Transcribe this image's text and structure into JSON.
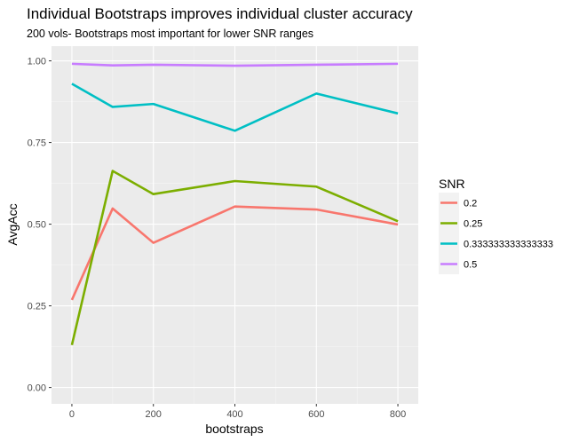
{
  "chart_data": {
    "type": "line",
    "title": "Individual Bootstraps improves individual cluster accuracy",
    "subtitle": "200 vols- Bootstraps most important for lower SNR ranges",
    "xlabel": "bootstraps",
    "ylabel": "AvgAcc",
    "x": [
      0,
      100,
      200,
      400,
      600,
      800
    ],
    "xlim": [
      -50,
      850
    ],
    "ylim": [
      -0.05,
      1.045
    ],
    "x_ticks": [
      0,
      200,
      400,
      600,
      800
    ],
    "x_tick_labels": [
      "0",
      "200",
      "400",
      "600",
      "800"
    ],
    "y_ticks": [
      0,
      0.25,
      0.5,
      0.75,
      1.0
    ],
    "y_tick_labels": [
      "0.00",
      "0.25",
      "0.50",
      "0.75",
      "1.00"
    ],
    "grid": true,
    "legend": {
      "title": "SNR",
      "position": "right"
    },
    "series": [
      {
        "name": "0.2",
        "color": "#F8766D",
        "values": [
          0.268,
          0.548,
          0.443,
          0.554,
          0.545,
          0.499
        ]
      },
      {
        "name": "0.25",
        "color": "#7CAE00",
        "values": [
          0.13,
          0.663,
          0.592,
          0.632,
          0.615,
          0.509
        ]
      },
      {
        "name": "0.333333333333333",
        "color": "#00BFC4",
        "values": [
          0.93,
          0.859,
          0.868,
          0.786,
          0.9,
          0.839
        ]
      },
      {
        "name": "0.5",
        "color": "#C77CFF",
        "values": [
          0.991,
          0.986,
          0.988,
          0.985,
          0.988,
          0.991
        ]
      }
    ]
  }
}
